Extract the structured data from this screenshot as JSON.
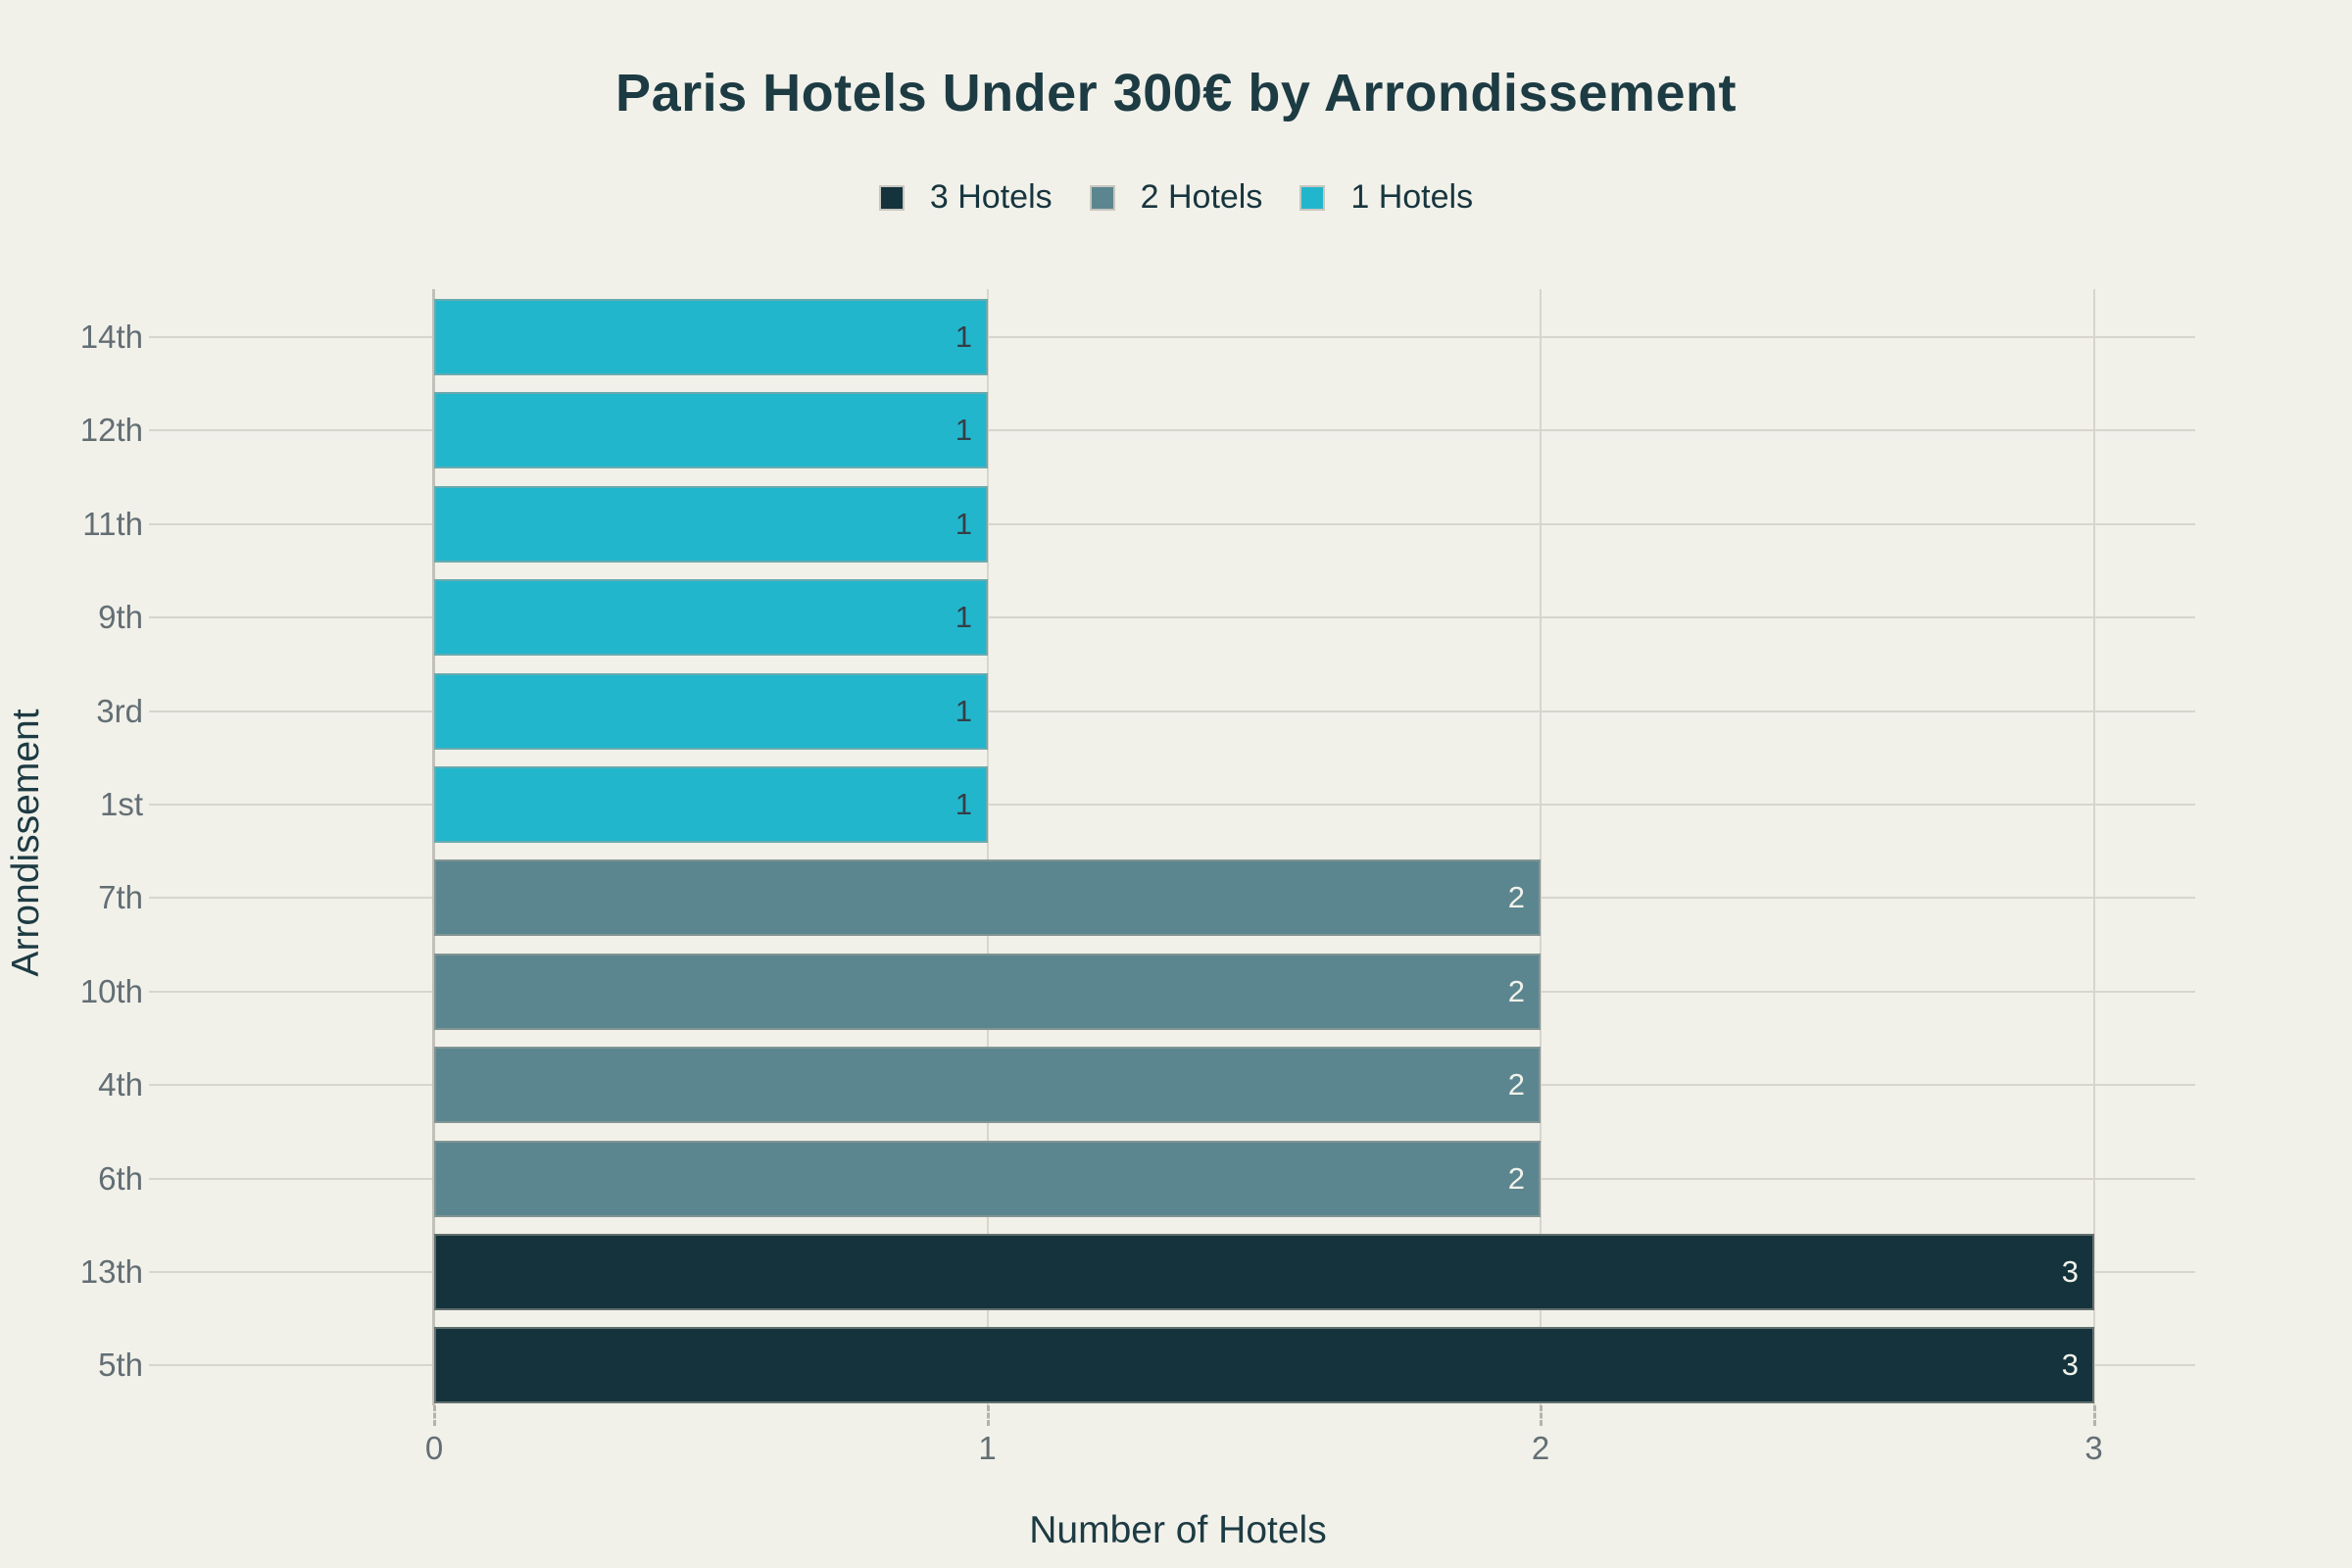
{
  "title": "Paris Hotels Under 300€ by Arrondissement",
  "legend": {
    "items": [
      {
        "label": "3 Hotels",
        "color": "#14333c"
      },
      {
        "label": "2 Hotels",
        "color": "#5b868f"
      },
      {
        "label": "1 Hotels",
        "color": "#22b6cd"
      }
    ]
  },
  "axes": {
    "x_title": "Number of Hotels",
    "y_title": "Arrondissement",
    "x_tick_labels": [
      "0",
      "1",
      "2",
      "3"
    ]
  },
  "chart_data": {
    "type": "bar",
    "orientation": "horizontal",
    "title": "Paris Hotels Under 300€ by Arrondissement",
    "xlabel": "Number of Hotels",
    "ylabel": "Arrondissement",
    "categories": [
      "14th",
      "12th",
      "11th",
      "9th",
      "3rd",
      "1st",
      "7th",
      "10th",
      "4th",
      "6th",
      "13th",
      "5th"
    ],
    "values": [
      1,
      1,
      1,
      1,
      1,
      1,
      2,
      2,
      2,
      2,
      3,
      3
    ],
    "xlim": [
      0,
      3.18
    ],
    "x_ticks": [
      0,
      1,
      2,
      3
    ],
    "grid": true,
    "legend_position": "top",
    "bar_color_by_value": {
      "1": "#22b6cd",
      "2": "#5b868f",
      "3": "#14333c"
    },
    "value_label_color_by_value": {
      "1": "#333f47",
      "2": "#f1f1ea",
      "3": "#f1f1ea"
    },
    "series_names_by_value": {
      "1": "1 Hotels",
      "2": "2 Hotels",
      "3": "3 Hotels"
    }
  },
  "colors": {
    "background": "#f1f1ea",
    "title_text": "#1d3b43",
    "tick_text": "#636e74",
    "gridline": "#d7d5cc",
    "axis_line": "#c2c0b8"
  }
}
